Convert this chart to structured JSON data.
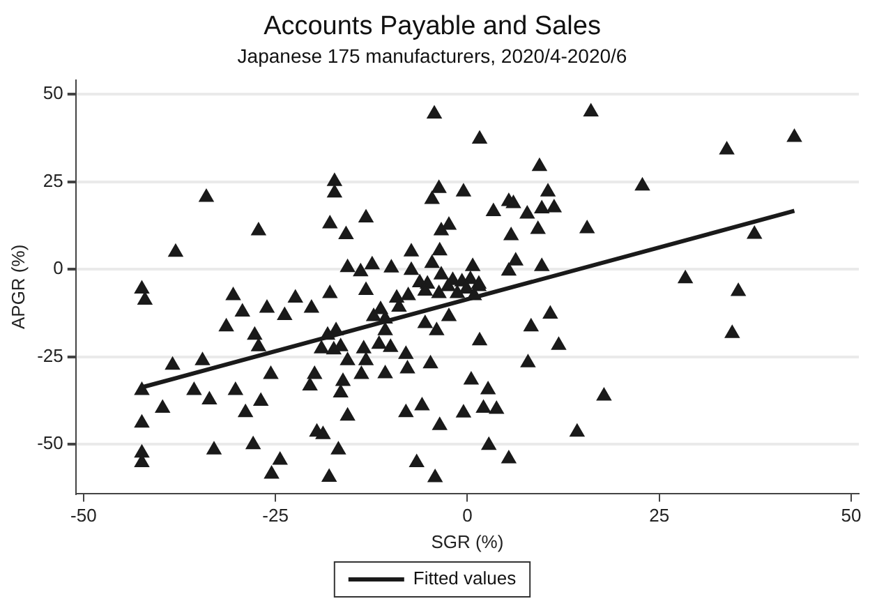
{
  "chart_data": {
    "type": "scatter",
    "title": "Accounts Payable and Sales",
    "subtitle": "Japanese 175 manufacturers, 2020/4-2020/6",
    "xlabel": "SGR (%)",
    "ylabel": "APGR (%)",
    "xlim": [
      -51,
      51
    ],
    "xticks": [
      -50,
      -25,
      0,
      25,
      50
    ],
    "ylim": [
      -64,
      54
    ],
    "yticks": [
      -50,
      -25,
      0,
      25,
      50
    ],
    "grid": "y",
    "legend": "bottom",
    "series": [
      {
        "color": "#1a1a1a",
        "marker": "triangle",
        "x": [
          -17.3,
          -17.3,
          -34.0,
          -27.2,
          -17.9,
          -15.8,
          -38.0,
          -15.6,
          -4.3,
          16.1,
          1.6,
          9.4,
          -3.7,
          -0.5,
          -4.6,
          10.5,
          5.4,
          6.0,
          3.4,
          7.8,
          9.7,
          11.3,
          -13.2,
          -2.4,
          -3.4,
          5.7,
          9.2,
          15.6,
          -7.3,
          -3.6,
          6.3,
          -13.9,
          -12.4,
          -9.9,
          -7.3,
          -4.6,
          0.7,
          5.4,
          9.7,
          -3.4,
          -6.2,
          -5.2,
          -1.9,
          -0.7,
          0.4,
          1.5,
          22.8,
          33.8,
          42.6,
          37.4,
          28.4,
          35.3,
          34.5,
          17.8,
          -42.4,
          -42.0,
          -30.5,
          -29.3,
          -26.1,
          -23.8,
          -22.4,
          -20.3,
          -17.9,
          -31.4,
          -27.7,
          -27.2,
          -18.2,
          -17.1,
          -19.0,
          -17.4,
          -16.5,
          -15.6,
          -38.4,
          -34.5,
          -42.4,
          -35.6,
          -30.2,
          -25.6,
          -19.9,
          -20.5,
          -16.2,
          -16.5,
          -39.7,
          -33.6,
          -26.9,
          -28.9,
          -15.6,
          -42.4,
          -19.6,
          -18.8,
          -33.0,
          -27.9,
          -16.8,
          -42.4,
          -42.4,
          -24.4,
          -25.5,
          -18.0,
          -13.2,
          -9.2,
          -7.7,
          -5.5,
          -3.7,
          -2.5,
          -1.3,
          -0.1,
          1.5,
          0.9,
          -11.3,
          -12.2,
          -10.7,
          -8.9,
          -10.7,
          -5.5,
          -4.0,
          -2.4,
          8.3,
          10.8,
          11.9,
          1.6,
          -11.5,
          -10.0,
          -13.5,
          -8.0,
          -13.2,
          -4.8,
          -7.8,
          -10.7,
          -13.8,
          7.9,
          0.5,
          2.7,
          -5.9,
          -8.0,
          -0.5,
          2.1,
          3.8,
          -3.6,
          14.3,
          2.8,
          5.4,
          -6.6,
          -4.2
        ],
        "values": [
          25.1,
          21.8,
          20.6,
          11.0,
          13.0,
          9.9,
          4.9,
          0.5,
          44.4,
          45.0,
          37.2,
          29.4,
          23.1,
          22.1,
          20.0,
          22.1,
          19.4,
          18.8,
          16.5,
          15.8,
          17.3,
          17.6,
          14.7,
          12.6,
          11.0,
          9.6,
          11.4,
          11.6,
          5.0,
          5.3,
          2.4,
          -0.7,
          1.3,
          0.4,
          -0.3,
          1.7,
          0.8,
          -0.5,
          0.8,
          -1.6,
          -3.8,
          -4.2,
          -3.2,
          -3.6,
          -2.9,
          -4.2,
          23.8,
          34.1,
          37.7,
          10.0,
          -2.7,
          -6.3,
          -18.3,
          -36.2,
          -5.6,
          -8.8,
          -7.5,
          -12.2,
          -11.1,
          -13.2,
          -8.2,
          -11.1,
          -6.9,
          -16.4,
          -18.8,
          -22.1,
          -18.8,
          -17.5,
          -22.7,
          -23.0,
          -22.1,
          -26.1,
          -27.4,
          -26.1,
          -34.6,
          -34.6,
          -34.6,
          -30.0,
          -30.0,
          -33.3,
          -32.0,
          -35.3,
          -39.7,
          -37.3,
          -37.7,
          -40.9,
          -41.9,
          -43.9,
          -46.5,
          -47.2,
          -51.6,
          -50.1,
          -51.6,
          -52.5,
          -55.2,
          -54.5,
          -58.5,
          -59.4,
          -6.0,
          -8.2,
          -7.5,
          -6.2,
          -6.9,
          -4.9,
          -6.9,
          -5.6,
          -4.9,
          -7.5,
          -11.5,
          -13.5,
          -14.2,
          -10.8,
          -17.5,
          -15.5,
          -17.5,
          -13.5,
          -16.4,
          -12.8,
          -21.7,
          -20.4,
          -21.4,
          -22.3,
          -22.7,
          -24.3,
          -26.1,
          -27.0,
          -28.4,
          -29.8,
          -30.0,
          -26.7,
          -31.6,
          -34.4,
          -39.0,
          -40.9,
          -41.0,
          -39.7,
          -40.0,
          -44.6,
          -46.5,
          -50.3,
          -54.1,
          -55.2,
          -59.5
        ]
      },
      {
        "type": "line",
        "name": "Fitted values",
        "color": "#1a1a1a",
        "marker": "none",
        "x": [
          -42.4,
          42.6
        ],
        "values": [
          -33.7,
          16.7
        ]
      }
    ]
  }
}
